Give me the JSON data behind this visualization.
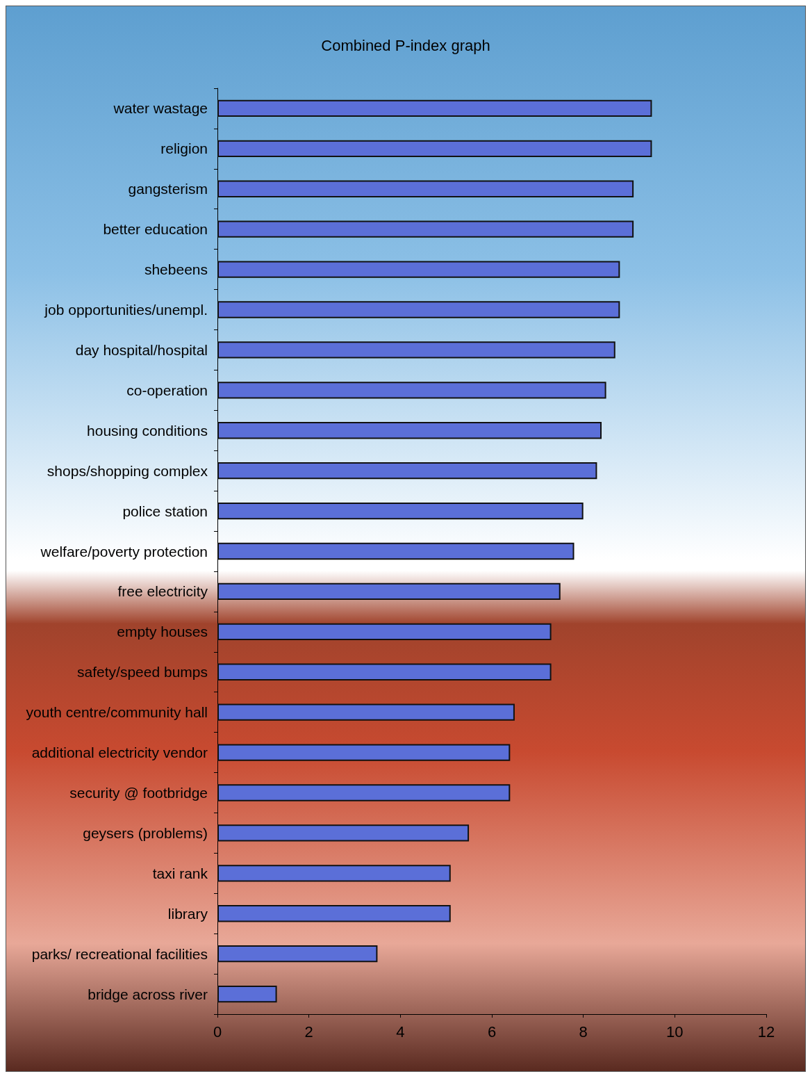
{
  "chart_data": {
    "type": "bar",
    "orientation": "horizontal",
    "title": "Combined P-index graph",
    "categories": [
      "water wastage",
      "religion",
      "gangsterism",
      "better education",
      "shebeens",
      "job opportunities/unempl.",
      "day hospital/hospital",
      "co-operation",
      "housing conditions",
      "shops/shopping complex",
      "police station",
      "welfare/poverty protection",
      "free electricity",
      "empty houses",
      "safety/speed bumps",
      "youth centre/community hall",
      "additional electricity vendor",
      "security @ footbridge",
      "geysers (problems)",
      "taxi rank",
      "library",
      "parks/ recreational facilities",
      "bridge across river"
    ],
    "values": [
      9.5,
      9.5,
      9.1,
      9.1,
      8.8,
      8.8,
      8.7,
      8.5,
      8.4,
      8.3,
      8.0,
      7.8,
      7.5,
      7.3,
      7.3,
      6.5,
      6.4,
      6.4,
      5.5,
      5.1,
      5.1,
      3.5,
      1.3
    ],
    "color": "#5b6fd8",
    "xlim": [
      0,
      12
    ],
    "xticks": [
      0,
      2,
      4,
      6,
      8,
      10,
      12
    ],
    "grid": false
  }
}
